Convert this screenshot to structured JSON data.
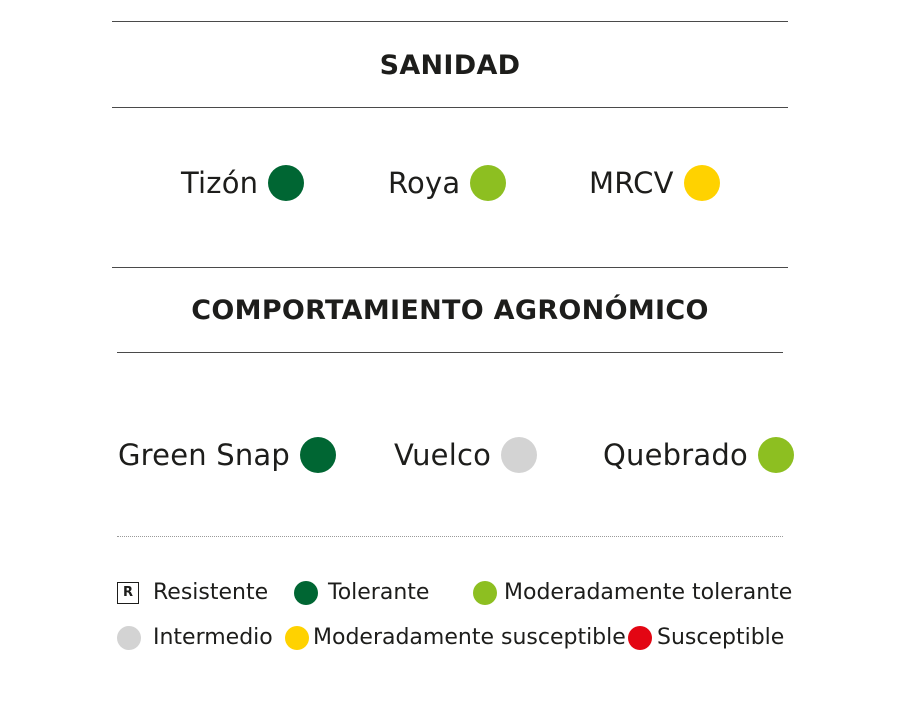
{
  "sanidad": {
    "title": "SANIDAD",
    "items": [
      {
        "label": "Tizón",
        "color": "#006633"
      },
      {
        "label": "Roya",
        "color": "#8dbf21"
      },
      {
        "label": "MRCV",
        "color": "#ffd200"
      }
    ]
  },
  "agronomico": {
    "title": "COMPORTAMIENTO AGRONÓMICO",
    "items": [
      {
        "label": "Green Snap",
        "color": "#006633"
      },
      {
        "label": "Vuelco",
        "color": "#d3d3d3"
      },
      {
        "label": "Quebrado",
        "color": "#8dbf21"
      }
    ]
  },
  "legend": {
    "resistente": {
      "symbol": "R",
      "label": "Resistente"
    },
    "tolerante": {
      "label": "Tolerante",
      "color": "#006633"
    },
    "moderadamente_tolerante": {
      "label": "Moderadamente tolerante",
      "color": "#8dbf21"
    },
    "intermedio": {
      "label": "Intermedio",
      "color": "#d3d3d3"
    },
    "moderadamente_susceptible": {
      "label": "Moderadamente susceptible",
      "color": "#ffd200"
    },
    "susceptible": {
      "label": "Susceptible",
      "color": "#e30613"
    }
  }
}
